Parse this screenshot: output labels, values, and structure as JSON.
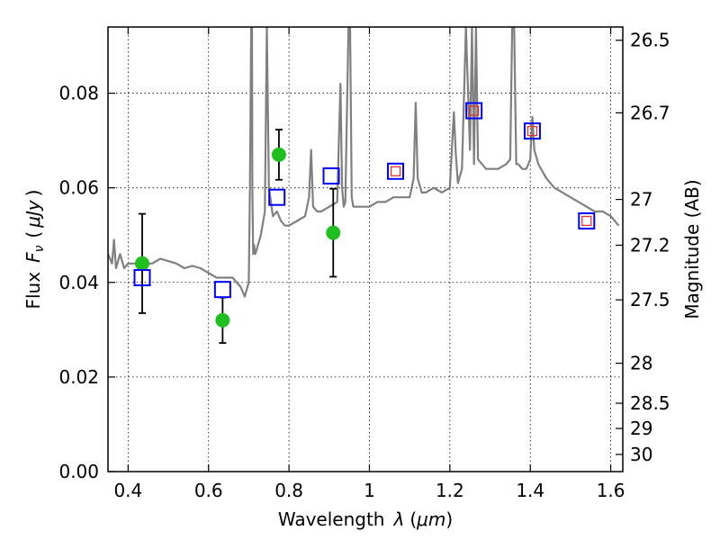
{
  "chart_data": {
    "type": "scatter",
    "xlabel": "Wavelength",
    "xlabel_symbol": "λ",
    "xlabel_unit": "μm",
    "ylabel": "Flux",
    "ylabel_symbol": "F",
    "ylabel_subscript": "ν",
    "ylabel_unit": "μJy",
    "y2label": "Magnitude (AB)",
    "xlim": [
      0.35,
      1.63
    ],
    "ylim": [
      0,
      0.094
    ],
    "grid": true,
    "x_ticks": [
      0.4,
      0.6,
      0.8,
      1.0,
      1.2,
      1.4,
      1.6
    ],
    "x_tick_labels": [
      "0.4",
      "0.6",
      "0.8",
      "1",
      "1.2",
      "1.4",
      "1.6"
    ],
    "y_ticks": [
      0,
      0.02,
      0.04,
      0.06,
      0.08
    ],
    "y_tick_labels": [
      "0.00",
      "0.02",
      "0.04",
      "0.06",
      "0.08"
    ],
    "y2_ticks": [
      26.5,
      26.7,
      27,
      27.2,
      27.5,
      28,
      28.5,
      29,
      30
    ],
    "y2_tick_labels": [
      "26.5",
      "26.7",
      "27",
      "27.2",
      "27.5",
      "28",
      "28.5",
      "29",
      "30"
    ],
    "colors": {
      "spectrum": "#808080",
      "observed": "#1fbf1f",
      "model_square": "#0000ff",
      "model_inner": "#e03030",
      "errorbar": "#000000"
    },
    "spectrum": {
      "x": [
        0.35,
        0.36,
        0.365,
        0.37,
        0.38,
        0.39,
        0.4,
        0.42,
        0.44,
        0.46,
        0.48,
        0.5,
        0.52,
        0.54,
        0.56,
        0.58,
        0.6,
        0.62,
        0.64,
        0.66,
        0.68,
        0.69,
        0.7,
        0.703,
        0.706,
        0.708,
        0.709,
        0.711,
        0.713,
        0.716,
        0.72,
        0.73,
        0.74,
        0.745,
        0.75,
        0.76,
        0.77,
        0.78,
        0.79,
        0.8,
        0.82,
        0.84,
        0.85,
        0.855,
        0.86,
        0.87,
        0.88,
        0.9,
        0.92,
        0.928,
        0.932,
        0.936,
        0.94,
        0.948,
        0.952,
        0.956,
        0.96,
        0.98,
        1.0,
        1.02,
        1.04,
        1.06,
        1.08,
        1.1,
        1.11,
        1.115,
        1.12,
        1.13,
        1.14,
        1.16,
        1.18,
        1.2,
        1.21,
        1.215,
        1.22,
        1.23,
        1.24,
        1.25,
        1.255,
        1.26,
        1.265,
        1.27,
        1.28,
        1.29,
        1.3,
        1.32,
        1.34,
        1.35,
        1.355,
        1.36,
        1.365,
        1.37,
        1.38,
        1.39,
        1.4,
        1.405,
        1.41,
        1.42,
        1.44,
        1.46,
        1.48,
        1.5,
        1.52,
        1.54,
        1.56,
        1.58,
        1.6,
        1.62
      ],
      "y": [
        0.046,
        0.044,
        0.049,
        0.043,
        0.046,
        0.043,
        0.044,
        0.044,
        0.044,
        0.044,
        0.045,
        0.0445,
        0.044,
        0.043,
        0.0435,
        0.043,
        0.042,
        0.041,
        0.041,
        0.041,
        0.039,
        0.037,
        0.04,
        0.06,
        0.094,
        0.094,
        0.06,
        0.046,
        0.048,
        0.046,
        0.047,
        0.05,
        0.055,
        0.094,
        0.06,
        0.054,
        0.055,
        0.053,
        0.052,
        0.052,
        0.053,
        0.054,
        0.058,
        0.068,
        0.056,
        0.055,
        0.055,
        0.056,
        0.057,
        0.082,
        0.06,
        0.056,
        0.057,
        0.094,
        0.094,
        0.058,
        0.056,
        0.056,
        0.056,
        0.057,
        0.057,
        0.058,
        0.058,
        0.058,
        0.062,
        0.078,
        0.062,
        0.059,
        0.059,
        0.06,
        0.059,
        0.06,
        0.076,
        0.067,
        0.061,
        0.064,
        0.094,
        0.068,
        0.094,
        0.065,
        0.094,
        0.066,
        0.065,
        0.064,
        0.064,
        0.064,
        0.065,
        0.066,
        0.094,
        0.094,
        0.065,
        0.065,
        0.064,
        0.064,
        0.066,
        0.075,
        0.068,
        0.065,
        0.062,
        0.06,
        0.059,
        0.058,
        0.057,
        0.056,
        0.055,
        0.055,
        0.054,
        0.052
      ]
    },
    "observed": [
      {
        "x": 0.435,
        "y": 0.044,
        "err": 0.0105
      },
      {
        "x": 0.635,
        "y": 0.032,
        "err": 0.0048
      },
      {
        "x": 0.775,
        "y": 0.067,
        "err": 0.0053
      },
      {
        "x": 0.91,
        "y": 0.0505,
        "err": 0.0093
      }
    ],
    "model_points": [
      {
        "x": 0.435,
        "y": 0.041,
        "inner": false
      },
      {
        "x": 0.635,
        "y": 0.0385,
        "inner": false
      },
      {
        "x": 0.77,
        "y": 0.058,
        "inner": false
      },
      {
        "x": 0.905,
        "y": 0.0625,
        "inner": false
      },
      {
        "x": 1.065,
        "y": 0.0635,
        "inner": true
      },
      {
        "x": 1.26,
        "y": 0.0763,
        "inner": true
      },
      {
        "x": 1.405,
        "y": 0.072,
        "inner": true
      },
      {
        "x": 1.54,
        "y": 0.053,
        "inner": true
      }
    ]
  }
}
